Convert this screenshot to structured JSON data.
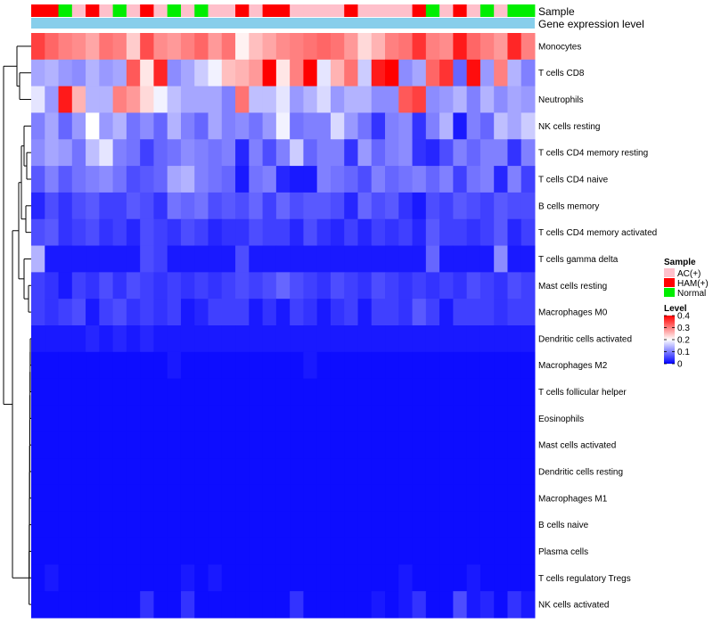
{
  "chart_data": {
    "type": "heatmap",
    "title": "",
    "value_range": [
      0,
      0.4
    ],
    "annotation_labels": {
      "sample": "Sample",
      "gene": "Gene expression level"
    },
    "legend": {
      "sample_title": "Sample",
      "sample_entries": [
        {
          "label": "AC(+)",
          "color": "#FFC0CB"
        },
        {
          "label": "HAM(+)",
          "color": "#FF0000"
        },
        {
          "label": "Normal",
          "color": "#00EE00"
        }
      ],
      "level_title": "Level",
      "level_ticks": [
        "0.4",
        "0.3",
        "0.2",
        "0.1",
        "0"
      ],
      "level_tick_values": [
        0.4,
        0.3,
        0.2,
        0.1,
        0
      ]
    },
    "gene_color": "#87CEEB",
    "sample_groups": [
      "HAM(+)",
      "HAM(+)",
      "Normal",
      "AC(+)",
      "HAM(+)",
      "AC(+)",
      "Normal",
      "AC(+)",
      "HAM(+)",
      "AC(+)",
      "Normal",
      "AC(+)",
      "Normal",
      "AC(+)",
      "AC(+)",
      "HAM(+)",
      "AC(+)",
      "HAM(+)",
      "HAM(+)",
      "AC(+)",
      "AC(+)",
      "AC(+)",
      "AC(+)",
      "HAM(+)",
      "AC(+)",
      "AC(+)",
      "AC(+)",
      "AC(+)",
      "HAM(+)",
      "Normal",
      "AC(+)",
      "HAM(+)",
      "AC(+)",
      "Normal",
      "AC(+)",
      "Normal",
      "Normal"
    ],
    "rows": [
      "Monocytes",
      "T cells CD8",
      "Neutrophils",
      "NK cells resting",
      "T cells CD4 memory resting",
      "T cells CD4 naive",
      "B cells memory",
      "T cells CD4 memory activated",
      "T cells gamma delta",
      "Mast cells resting",
      "Macrophages M0",
      "Dendritic cells activated",
      "Macrophages M2",
      "T cells follicular helper",
      "Eosinophils",
      "Mast cells activated",
      "Dendritic cells resting",
      "Macrophages M1",
      "B cells naive",
      "Plasma cells",
      "T cells regulatory  Tregs",
      "NK cells activated"
    ],
    "values": [
      [
        0.35,
        0.32,
        0.3,
        0.29,
        0.27,
        0.31,
        0.3,
        0.24,
        0.34,
        0.29,
        0.28,
        0.3,
        0.32,
        0.28,
        0.31,
        0.21,
        0.25,
        0.27,
        0.29,
        0.3,
        0.31,
        0.32,
        0.31,
        0.28,
        0.23,
        0.26,
        0.3,
        0.31,
        0.36,
        0.3,
        0.29,
        0.38,
        0.32,
        0.3,
        0.28,
        0.37,
        0.3
      ],
      [
        0.13,
        0.14,
        0.12,
        0.11,
        0.14,
        0.12,
        0.13,
        0.33,
        0.22,
        0.37,
        0.11,
        0.13,
        0.16,
        0.19,
        0.25,
        0.26,
        0.28,
        0.4,
        0.22,
        0.3,
        0.4,
        0.18,
        0.26,
        0.31,
        0.16,
        0.38,
        0.4,
        0.11,
        0.13,
        0.32,
        0.36,
        0.08,
        0.39,
        0.12,
        0.3,
        0.14,
        0.1
      ],
      [
        0.18,
        0.12,
        0.38,
        0.26,
        0.14,
        0.14,
        0.3,
        0.28,
        0.23,
        0.19,
        0.15,
        0.13,
        0.13,
        0.13,
        0.1,
        0.31,
        0.15,
        0.15,
        0.18,
        0.12,
        0.14,
        0.17,
        0.12,
        0.14,
        0.14,
        0.11,
        0.11,
        0.33,
        0.35,
        0.11,
        0.12,
        0.14,
        0.1,
        0.14,
        0.11,
        0.13,
        0.12
      ],
      [
        0.1,
        0.13,
        0.08,
        0.12,
        0.2,
        0.12,
        0.14,
        0.09,
        0.11,
        0.08,
        0.14,
        0.1,
        0.08,
        0.13,
        0.1,
        0.11,
        0.09,
        0.12,
        0.19,
        0.09,
        0.1,
        0.1,
        0.17,
        0.12,
        0.09,
        0.04,
        0.1,
        0.11,
        0.04,
        0.1,
        0.14,
        0.02,
        0.1,
        0.08,
        0.15,
        0.13,
        0.16
      ],
      [
        0.11,
        0.13,
        0.12,
        0.09,
        0.15,
        0.18,
        0.1,
        0.09,
        0.05,
        0.08,
        0.09,
        0.11,
        0.1,
        0.09,
        0.1,
        0.03,
        0.1,
        0.06,
        0.1,
        0.16,
        0.08,
        0.1,
        0.1,
        0.04,
        0.12,
        0.08,
        0.1,
        0.11,
        0.04,
        0.03,
        0.06,
        0.1,
        0.08,
        0.1,
        0.1,
        0.04,
        0.1
      ],
      [
        0.07,
        0.1,
        0.07,
        0.09,
        0.1,
        0.11,
        0.09,
        0.06,
        0.07,
        0.08,
        0.13,
        0.14,
        0.1,
        0.09,
        0.08,
        0.02,
        0.09,
        0.1,
        0.03,
        0.02,
        0.02,
        0.1,
        0.09,
        0.08,
        0.06,
        0.1,
        0.08,
        0.09,
        0.1,
        0.08,
        0.1,
        0.05,
        0.09,
        0.1,
        0.03,
        0.1,
        0.05
      ],
      [
        0.03,
        0.06,
        0.04,
        0.06,
        0.07,
        0.05,
        0.05,
        0.07,
        0.06,
        0.04,
        0.09,
        0.08,
        0.09,
        0.06,
        0.07,
        0.06,
        0.08,
        0.05,
        0.08,
        0.06,
        0.07,
        0.07,
        0.06,
        0.03,
        0.08,
        0.06,
        0.07,
        0.04,
        0.02,
        0.06,
        0.05,
        0.07,
        0.06,
        0.05,
        0.07,
        0.06,
        0.06
      ],
      [
        0.06,
        0.07,
        0.04,
        0.05,
        0.06,
        0.04,
        0.05,
        0.03,
        0.06,
        0.05,
        0.04,
        0.06,
        0.05,
        0.03,
        0.04,
        0.04,
        0.06,
        0.05,
        0.05,
        0.03,
        0.06,
        0.04,
        0.03,
        0.05,
        0.03,
        0.05,
        0.04,
        0.05,
        0.03,
        0.07,
        0.05,
        0.05,
        0.04,
        0.05,
        0.07,
        0.03,
        0.05
      ],
      [
        0.14,
        0.02,
        0.02,
        0.02,
        0.02,
        0.02,
        0.02,
        0.02,
        0.06,
        0.05,
        0.02,
        0.02,
        0.02,
        0.02,
        0.02,
        0.06,
        0.02,
        0.02,
        0.02,
        0.02,
        0.02,
        0.02,
        0.02,
        0.02,
        0.02,
        0.02,
        0.02,
        0.02,
        0.02,
        0.08,
        0.02,
        0.02,
        0.02,
        0.02,
        0.11,
        0.02,
        0.02
      ],
      [
        0.05,
        0.04,
        0.02,
        0.05,
        0.04,
        0.06,
        0.04,
        0.06,
        0.05,
        0.04,
        0.05,
        0.04,
        0.05,
        0.04,
        0.05,
        0.06,
        0.05,
        0.06,
        0.08,
        0.06,
        0.05,
        0.04,
        0.06,
        0.05,
        0.04,
        0.06,
        0.05,
        0.04,
        0.05,
        0.04,
        0.05,
        0.04,
        0.06,
        0.05,
        0.04,
        0.06,
        0.05
      ],
      [
        0.05,
        0.04,
        0.05,
        0.06,
        0.02,
        0.05,
        0.06,
        0.04,
        0.05,
        0.04,
        0.05,
        0.02,
        0.03,
        0.05,
        0.05,
        0.05,
        0.02,
        0.04,
        0.02,
        0.05,
        0.04,
        0.02,
        0.04,
        0.05,
        0.02,
        0.05,
        0.05,
        0.04,
        0.07,
        0.05,
        0.02,
        0.05,
        0.05,
        0.05,
        0.04,
        0.05,
        0.05
      ],
      [
        0.02,
        0.02,
        0.02,
        0.02,
        0.03,
        0.02,
        0.03,
        0.02,
        0.03,
        0.02,
        0.02,
        0.02,
        0.02,
        0.02,
        0.02,
        0.02,
        0.02,
        0.02,
        0.02,
        0.02,
        0.02,
        0.02,
        0.02,
        0.02,
        0.02,
        0.02,
        0.02,
        0.02,
        0.02,
        0.02,
        0.02,
        0.02,
        0.02,
        0.02,
        0.02,
        0.02,
        0.02
      ],
      [
        0.01,
        0.01,
        0.01,
        0.01,
        0.01,
        0.01,
        0.01,
        0.01,
        0.01,
        0.01,
        0.02,
        0.01,
        0.01,
        0.01,
        0.01,
        0.01,
        0.01,
        0.01,
        0.01,
        0.01,
        0.02,
        0.01,
        0.01,
        0.01,
        0.01,
        0.01,
        0.01,
        0.01,
        0.01,
        0.01,
        0.01,
        0.01,
        0.01,
        0.01,
        0.01,
        0.01,
        0.01
      ],
      [
        0.01,
        0.01,
        0.01,
        0.01,
        0.01,
        0.01,
        0.01,
        0.01,
        0.01,
        0.01,
        0.01,
        0.01,
        0.01,
        0.01,
        0.01,
        0.01,
        0.01,
        0.01,
        0.01,
        0.01,
        0.01,
        0.01,
        0.01,
        0.01,
        0.01,
        0.01,
        0.01,
        0.01,
        0.01,
        0.01,
        0.01,
        0.01,
        0.01,
        0.01,
        0.01,
        0.01,
        0.01
      ],
      [
        0.01,
        0.01,
        0.01,
        0.01,
        0.01,
        0.01,
        0.01,
        0.01,
        0.01,
        0.01,
        0.01,
        0.01,
        0.01,
        0.01,
        0.01,
        0.01,
        0.01,
        0.01,
        0.01,
        0.01,
        0.01,
        0.01,
        0.01,
        0.01,
        0.01,
        0.01,
        0.01,
        0.01,
        0.01,
        0.01,
        0.01,
        0.01,
        0.01,
        0.01,
        0.01,
        0.01,
        0.01
      ],
      [
        0.01,
        0.01,
        0.01,
        0.01,
        0.01,
        0.01,
        0.01,
        0.01,
        0.01,
        0.01,
        0.01,
        0.01,
        0.01,
        0.01,
        0.01,
        0.01,
        0.01,
        0.01,
        0.01,
        0.01,
        0.01,
        0.01,
        0.01,
        0.01,
        0.01,
        0.01,
        0.01,
        0.01,
        0.01,
        0.01,
        0.01,
        0.01,
        0.01,
        0.01,
        0.01,
        0.01,
        0.01
      ],
      [
        0.01,
        0.01,
        0.01,
        0.01,
        0.01,
        0.01,
        0.01,
        0.01,
        0.01,
        0.01,
        0.01,
        0.01,
        0.01,
        0.01,
        0.01,
        0.01,
        0.01,
        0.01,
        0.01,
        0.01,
        0.01,
        0.01,
        0.01,
        0.01,
        0.01,
        0.01,
        0.01,
        0.01,
        0.01,
        0.01,
        0.01,
        0.01,
        0.01,
        0.01,
        0.01,
        0.01,
        0.01
      ],
      [
        0.01,
        0.01,
        0.01,
        0.01,
        0.01,
        0.01,
        0.01,
        0.01,
        0.01,
        0.01,
        0.01,
        0.01,
        0.01,
        0.01,
        0.01,
        0.01,
        0.01,
        0.01,
        0.01,
        0.01,
        0.01,
        0.01,
        0.01,
        0.01,
        0.01,
        0.01,
        0.01,
        0.01,
        0.01,
        0.01,
        0.01,
        0.01,
        0.01,
        0.01,
        0.01,
        0.01,
        0.01
      ],
      [
        0.01,
        0.01,
        0.01,
        0.01,
        0.01,
        0.01,
        0.01,
        0.01,
        0.01,
        0.01,
        0.01,
        0.01,
        0.01,
        0.01,
        0.01,
        0.01,
        0.01,
        0.01,
        0.01,
        0.01,
        0.01,
        0.01,
        0.01,
        0.01,
        0.01,
        0.01,
        0.01,
        0.01,
        0.01,
        0.01,
        0.01,
        0.01,
        0.01,
        0.01,
        0.01,
        0.01,
        0.01
      ],
      [
        0.01,
        0.01,
        0.01,
        0.01,
        0.01,
        0.01,
        0.01,
        0.01,
        0.01,
        0.01,
        0.01,
        0.01,
        0.01,
        0.01,
        0.01,
        0.01,
        0.01,
        0.01,
        0.01,
        0.01,
        0.01,
        0.01,
        0.01,
        0.01,
        0.01,
        0.01,
        0.01,
        0.01,
        0.01,
        0.01,
        0.01,
        0.01,
        0.01,
        0.01,
        0.01,
        0.01,
        0.01
      ],
      [
        0.01,
        0.02,
        0.01,
        0.01,
        0.01,
        0.01,
        0.01,
        0.01,
        0.01,
        0.01,
        0.01,
        0.02,
        0.01,
        0.02,
        0.01,
        0.01,
        0.01,
        0.01,
        0.01,
        0.01,
        0.01,
        0.01,
        0.01,
        0.01,
        0.01,
        0.01,
        0.01,
        0.02,
        0.01,
        0.01,
        0.01,
        0.01,
        0.02,
        0.01,
        0.01,
        0.01,
        0.01
      ],
      [
        0.01,
        0.01,
        0.01,
        0.01,
        0.01,
        0.01,
        0.01,
        0.01,
        0.04,
        0.01,
        0.01,
        0.04,
        0.01,
        0.01,
        0.01,
        0.01,
        0.01,
        0.01,
        0.01,
        0.04,
        0.01,
        0.01,
        0.01,
        0.01,
        0.01,
        0.02,
        0.01,
        0.02,
        0.04,
        0.01,
        0.01,
        0.06,
        0.02,
        0.03,
        0.01,
        0.04,
        0.02
      ]
    ]
  }
}
